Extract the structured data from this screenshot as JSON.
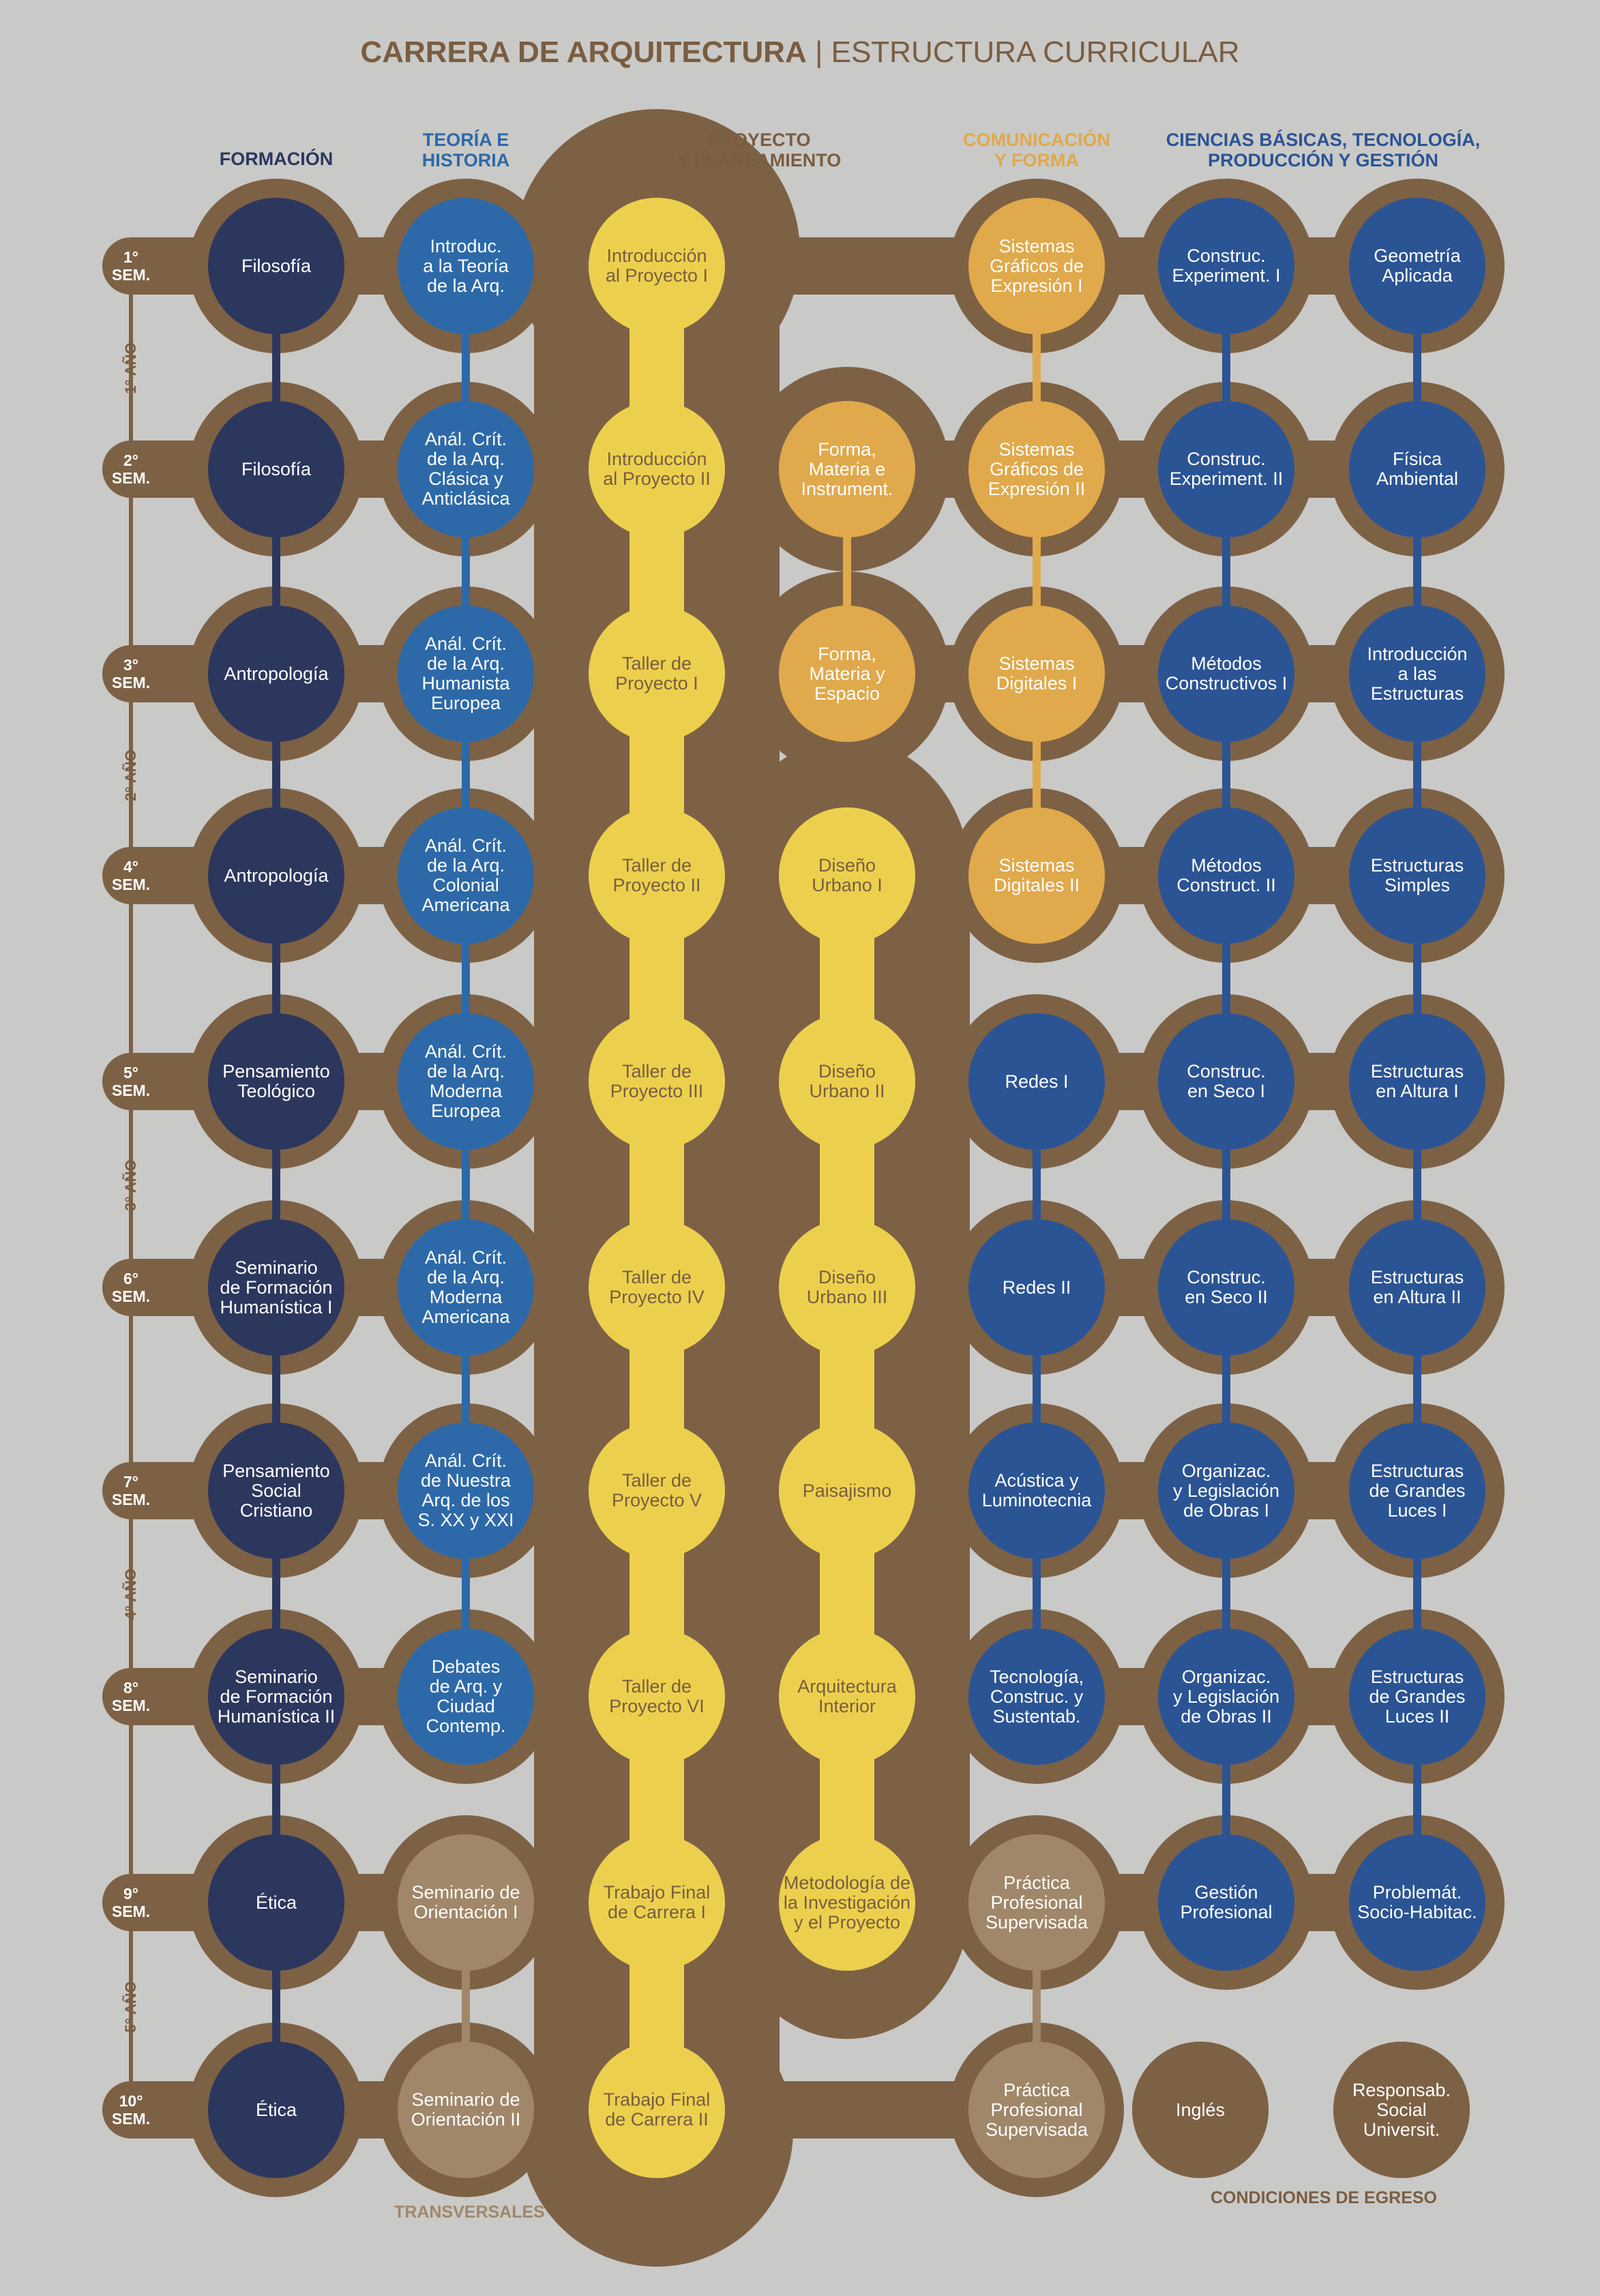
{
  "title": {
    "bold": "CARRERA DE ARQUITECTURA",
    "rest": " | ESTRUCTURA CURRICULAR"
  },
  "colors": {
    "background": "#c9c9c7",
    "brown": "#7d6145",
    "navy": "#2c375e",
    "mid_blue": "#2d69a8",
    "royal_blue": "#2b5494",
    "yellow": "#ecd04d",
    "orange": "#e0a94b",
    "tan": "#a0876a",
    "header_brown": "#7a5d41"
  },
  "column_headers": [
    {
      "text": "FORMACIÓN",
      "color": "#2c375e"
    },
    {
      "text": "TEORÍA E\nHISTORIA",
      "color": "#2d69a8"
    },
    {
      "text": "PROYECTO\nY PLANEAMIENTO",
      "color": "#7a5d41"
    },
    {
      "text": "COMUNICACIÓN\nY FORMA",
      "color": "#e0a94b"
    },
    {
      "text": "CIENCIAS BÁSICAS, TECNOLOGÍA,\nPRODUCCIÓN  Y GESTIÓN",
      "color": "#2b5494"
    }
  ],
  "semesters": [
    "1°\nSEM.",
    "2°\nSEM.",
    "3°\nSEM.",
    "4°\nSEM.",
    "5°\nSEM.",
    "6°\nSEM.",
    "7°\nSEM.",
    "8°\nSEM.",
    "9°\nSEM.",
    "10°\nSEM."
  ],
  "years": [
    "1° AÑO",
    "2° AÑO",
    "3° AÑO",
    "4° AÑO",
    "5° AÑO"
  ],
  "formacion": [
    "Filosofía",
    "Filosofía",
    "Antropología",
    "Antropología",
    "Pensamiento\nTeológico",
    "Seminario\nde Formación\nHumanística I",
    "Pensamiento\nSocial\nCristiano",
    "Seminario\nde Formación\nHumanística II",
    "Ética",
    "Ética"
  ],
  "teoria": [
    "Introduc.\na la Teoría\nde la Arq.",
    "Anál. Crít.\nde la Arq.\nClásica y\nAnticlásica",
    "Anál. Crít.\nde la Arq.\nHumanista\nEuropea",
    "Anál. Crít.\nde la Arq.\nColonial\nAmericana",
    "Anál. Crít.\nde la Arq.\nModerna\nEuropea",
    "Anál. Crít.\nde la Arq.\nModerna\nAmericana",
    "Anál. Crít.\nde Nuestra\nArq. de los\nS. XX y XXI",
    "Debates\nde Arq. y\nCiudad\nContemp.",
    "Seminario de\nOrientación I",
    "Seminario de\nOrientación II"
  ],
  "proyecto": [
    "Introducción\nal Proyecto I",
    "Introducción\nal Proyecto II",
    "Taller de\nProyecto I",
    "Taller de\nProyecto II",
    "Taller de\nProyecto III",
    "Taller de\nProyecto IV",
    "Taller de\nProyecto V",
    "Taller de\nProyecto VI",
    "Trabajo Final\nde Carrera I",
    "Trabajo Final\nde Carrera II"
  ],
  "proyecto2": [
    "",
    "Forma,\nMateria e\nInstrument.",
    "Forma,\nMateria y\nEspacio",
    "Diseño\nUrbano I",
    "Diseño\nUrbano II",
    "Diseño\nUrbano III",
    "Paisajismo",
    "Arquitectura\nInterior",
    "Metodología de\nla Investigación\ny el Proyecto",
    ""
  ],
  "comunicacion": [
    "Sistemas\nGráficos de\nExpresión I",
    "Sistemas\nGráficos de\nExpresión II",
    "Sistemas\nDigitales I",
    "Sistemas\nDigitales II",
    "Redes I",
    "Redes II",
    "Acústica y\nLuminotecnia",
    "Tecnología,\nConstruc. y\nSustentab.",
    "Práctica\nProfesional\nSupervisada",
    "Práctica\nProfesional\nSupervisada"
  ],
  "ciencias1": [
    "Construc.\nExperiment. I",
    "Construc.\nExperiment. II",
    "Métodos\nConstructivos I",
    "Métodos\nConstruct. II",
    "Construc.\nen Seco I",
    "Construc.\nen Seco II",
    "Organizac.\ny Legislación\nde Obras I",
    "Organizac.\ny Legislación\nde Obras II",
    "Gestión\nProfesional",
    "Inglés"
  ],
  "ciencias2": [
    "Geometría\nAplicada",
    "Física\nAmbiental",
    "Introducción\na las\nEstructuras",
    "Estructuras\nSimples",
    "Estructuras\nen Altura I",
    "Estructuras\nen Altura II",
    "Estructuras\nde Grandes\nLuces I",
    "Estructuras\nde Grandes\nLuces II",
    "Problemát.\nSocio-Habitac.",
    "Responsab.\nSocial\nUniversit."
  ],
  "footer": {
    "transversales": "TRANSVERSALES",
    "condiciones": "CONDICIONES DE EGRESO"
  }
}
